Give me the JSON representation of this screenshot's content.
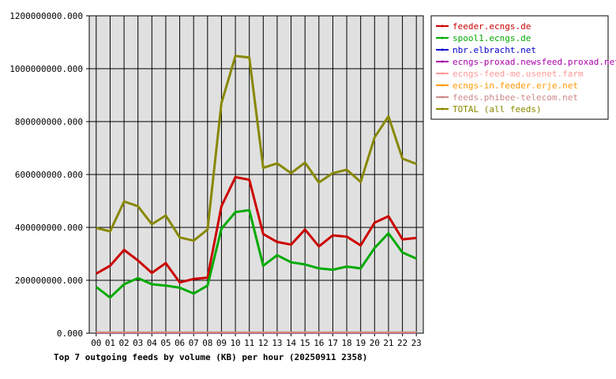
{
  "chart_data": {
    "type": "line",
    "title": "Top 7 outgoing feeds by volume (KB) per hour (20250911 2358)",
    "xlabel": "",
    "ylabel": "",
    "categories": [
      "00",
      "01",
      "02",
      "03",
      "04",
      "05",
      "06",
      "07",
      "08",
      "09",
      "10",
      "11",
      "12",
      "13",
      "14",
      "15",
      "16",
      "17",
      "18",
      "19",
      "20",
      "21",
      "22",
      "23"
    ],
    "ylim": [
      0,
      1200000000
    ],
    "yticks": [
      0,
      200000000,
      400000000,
      600000000,
      800000000,
      1000000000,
      1200000000
    ],
    "ytick_labels": [
      "0.000",
      "200000000.000",
      "400000000.000",
      "600000000.000",
      "800000000.000",
      "1000000000.000",
      "1200000000.000"
    ],
    "grid": true,
    "legend_position": "right",
    "series": [
      {
        "name": "feeder.ecngs.de",
        "color": "#cc0000",
        "values": [
          225000000,
          255000000,
          315000000,
          275000000,
          228000000,
          265000000,
          192000000,
          205000000,
          210000000,
          480000000,
          590000000,
          580000000,
          375000000,
          345000000,
          335000000,
          392000000,
          328000000,
          370000000,
          365000000,
          332000000,
          418000000,
          442000000,
          355000000,
          360000000
        ]
      },
      {
        "name": "spool1.ecngs.de",
        "color": "#00aa00",
        "values": [
          175000000,
          135000000,
          185000000,
          208000000,
          185000000,
          180000000,
          172000000,
          150000000,
          180000000,
          395000000,
          458000000,
          465000000,
          255000000,
          295000000,
          268000000,
          260000000,
          245000000,
          240000000,
          252000000,
          245000000,
          322000000,
          378000000,
          305000000,
          282000000
        ]
      },
      {
        "name": "nbr.elbracht.net",
        "color": "#0000cc",
        "values": [
          1000000,
          1000000,
          1000000,
          1000000,
          1000000,
          1000000,
          1000000,
          1000000,
          1000000,
          1000000,
          1000000,
          1000000,
          1000000,
          1000000,
          1000000,
          1000000,
          1000000,
          1000000,
          1000000,
          1000000,
          1000000,
          1000000,
          1000000,
          1000000
        ]
      },
      {
        "name": "ecngs-proxad.newsfeed.proxad.net",
        "color": "#aa00aa",
        "values": [
          2000000,
          2000000,
          2000000,
          2000000,
          2000000,
          2000000,
          2000000,
          2000000,
          2000000,
          2000000,
          2000000,
          2000000,
          2000000,
          2000000,
          2000000,
          2000000,
          2000000,
          2000000,
          2000000,
          2000000,
          2000000,
          2000000,
          2000000,
          2000000
        ]
      },
      {
        "name": "ecngs-feed-me.usenet.farm",
        "color": "#ff9999",
        "values": [
          3000000,
          3000000,
          3000000,
          3000000,
          3000000,
          3000000,
          3000000,
          3000000,
          3000000,
          3000000,
          3000000,
          3000000,
          3000000,
          3000000,
          3000000,
          3000000,
          3000000,
          3000000,
          3000000,
          3000000,
          3000000,
          3000000,
          3000000,
          3000000
        ]
      },
      {
        "name": "ecngs-in.feeder.erje.net",
        "color": "#ff9900",
        "values": [
          2500000,
          2500000,
          2500000,
          2500000,
          2500000,
          2500000,
          2500000,
          2500000,
          2500000,
          2500000,
          2500000,
          2500000,
          2500000,
          2500000,
          2500000,
          2500000,
          2500000,
          2500000,
          2500000,
          2500000,
          2500000,
          2500000,
          2500000,
          2500000
        ]
      },
      {
        "name": "feeds.phibee-telecom.net",
        "color": "#cc8888",
        "values": [
          3500000,
          3500000,
          3500000,
          3500000,
          3500000,
          3500000,
          3500000,
          3500000,
          3500000,
          3500000,
          3500000,
          3500000,
          3500000,
          3500000,
          3500000,
          3500000,
          3500000,
          3500000,
          3500000,
          3500000,
          3500000,
          3500000,
          3500000,
          3500000
        ]
      },
      {
        "name": "TOTAL (all feeds)",
        "color": "#888800",
        "values": [
          398000000,
          385000000,
          498000000,
          480000000,
          412000000,
          445000000,
          362000000,
          350000000,
          392000000,
          870000000,
          1048000000,
          1042000000,
          625000000,
          642000000,
          605000000,
          645000000,
          570000000,
          605000000,
          618000000,
          572000000,
          740000000,
          820000000,
          660000000,
          640000000
        ]
      }
    ]
  }
}
